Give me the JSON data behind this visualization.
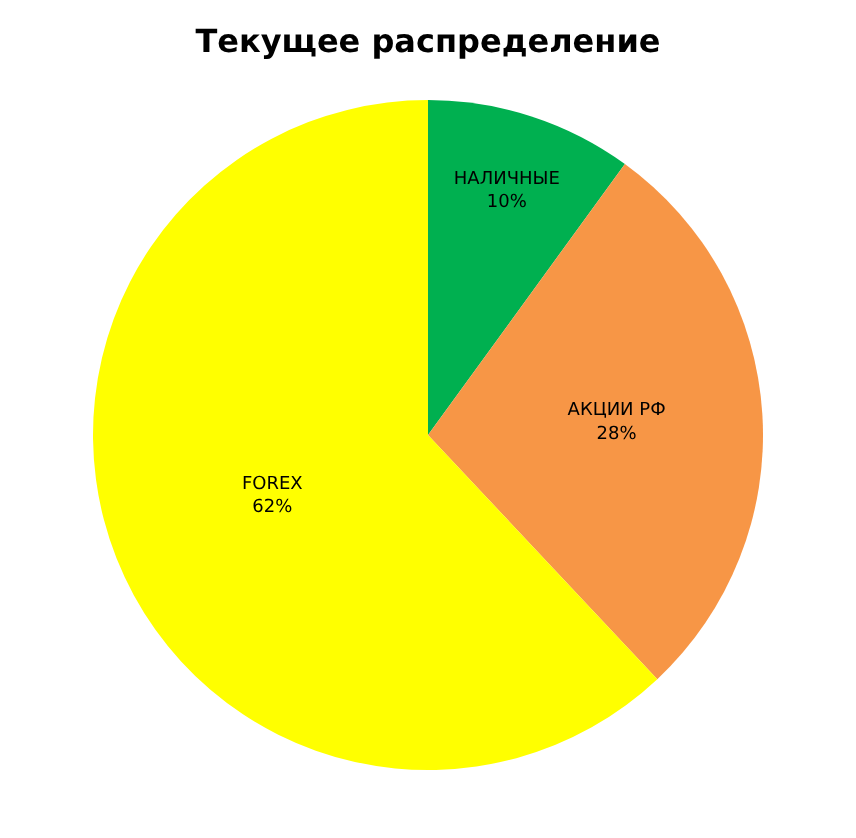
{
  "chart_data": {
    "type": "pie",
    "title": "Текущее распределение",
    "categories": [
      "НАЛИЧНЫЕ",
      "АКЦИИ РФ",
      "FOREX"
    ],
    "values": [
      10,
      28,
      62
    ],
    "value_labels": [
      "10%",
      "28%",
      "62%"
    ],
    "colors": [
      "#00b050",
      "#f79646",
      "#ffff00"
    ],
    "legend": false
  }
}
